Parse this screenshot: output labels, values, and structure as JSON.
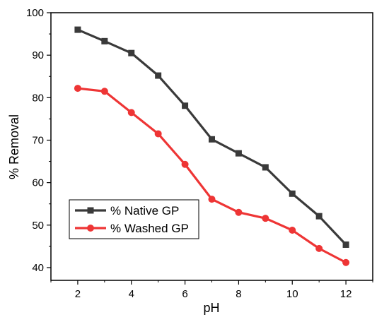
{
  "chart_data": {
    "type": "line",
    "title": "",
    "xlabel": "pH",
    "ylabel": "% Removal",
    "x": [
      2,
      3,
      4,
      5,
      6,
      7,
      8,
      9,
      10,
      11,
      12
    ],
    "xticks": [
      "2",
      "4",
      "6",
      "8",
      "10",
      "12"
    ],
    "yticks": [
      "40",
      "50",
      "60",
      "70",
      "80",
      "90",
      "100"
    ],
    "xlim": [
      1,
      13
    ],
    "ylim": [
      37,
      100
    ],
    "grid": false,
    "legend_position": "bottom-left",
    "series": [
      {
        "name": "% Native GP",
        "color": "#3a3a3a",
        "marker": "square",
        "values": [
          96.0,
          93.3,
          90.5,
          85.2,
          78.1,
          70.2,
          66.9,
          63.6,
          57.4,
          52.1,
          45.4
        ]
      },
      {
        "name": "% Washed GP",
        "color": "#ee3535",
        "marker": "circle",
        "values": [
          82.2,
          81.5,
          76.5,
          71.5,
          64.3,
          56.1,
          53.0,
          51.6,
          48.8,
          44.5,
          41.2
        ]
      }
    ]
  }
}
